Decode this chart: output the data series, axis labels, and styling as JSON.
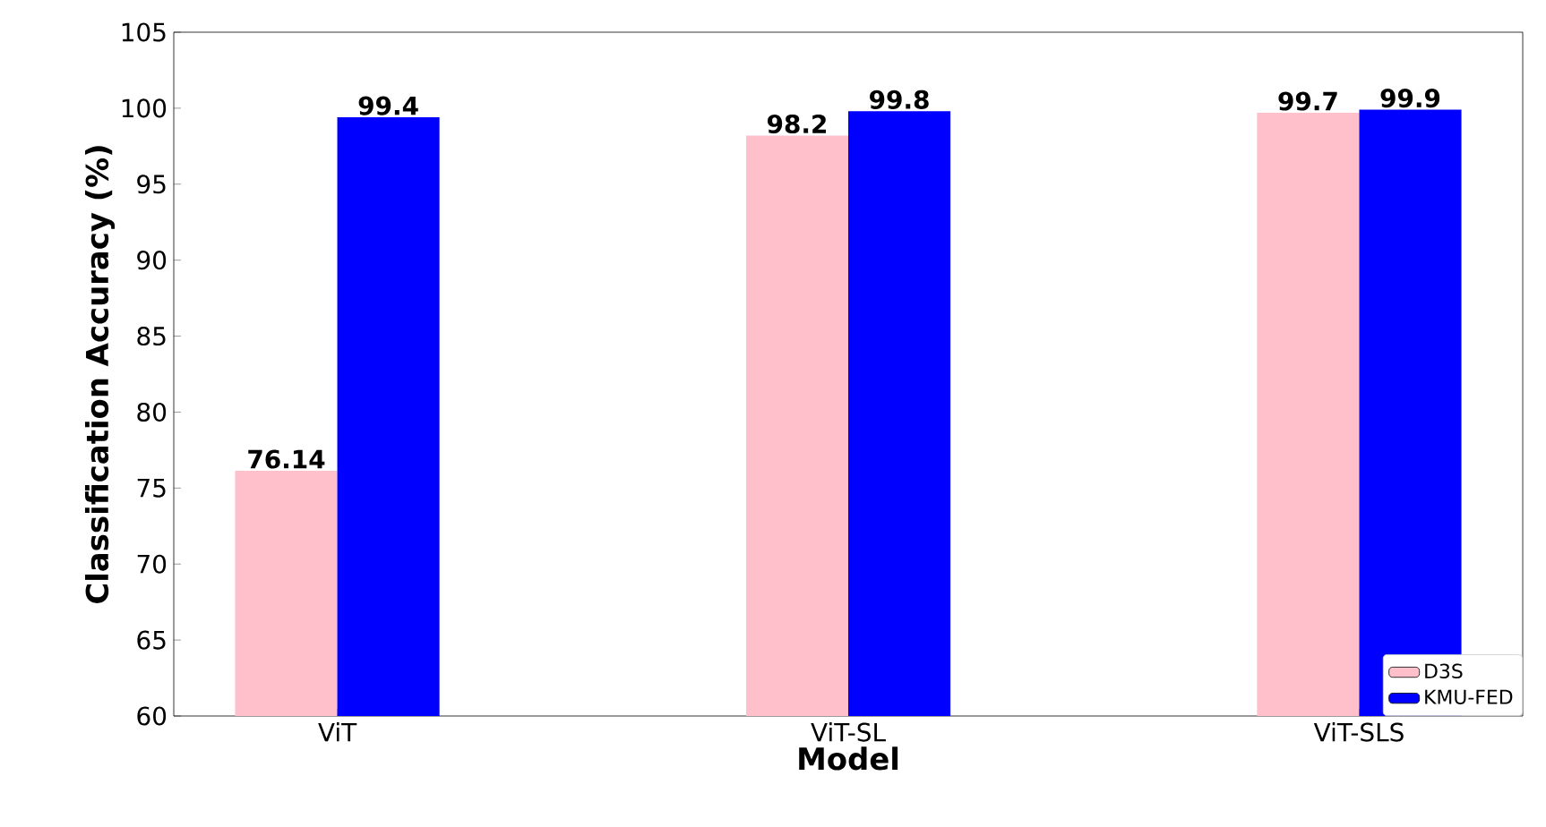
{
  "chart_data": {
    "type": "bar",
    "xlabel": "Model",
    "ylabel": "Classification Accuracy (%)",
    "categories": [
      "ViT",
      "ViT-SL",
      "ViT-SLS"
    ],
    "series": [
      {
        "name": "D3S",
        "color": "#ffc0cb",
        "values": [
          76.14,
          98.2,
          99.7
        ],
        "value_labels": [
          "76.14",
          "98.2",
          "99.7"
        ]
      },
      {
        "name": "KMU-FED",
        "color": "#0000ff",
        "values": [
          99.4,
          99.8,
          99.9
        ],
        "value_labels": [
          "99.4",
          "99.8",
          "99.9"
        ]
      }
    ],
    "ylim": [
      60,
      105
    ],
    "yticks": [
      60,
      65,
      70,
      75,
      80,
      85,
      90,
      95,
      100,
      105
    ],
    "legend": "bottom right",
    "grid": false
  }
}
